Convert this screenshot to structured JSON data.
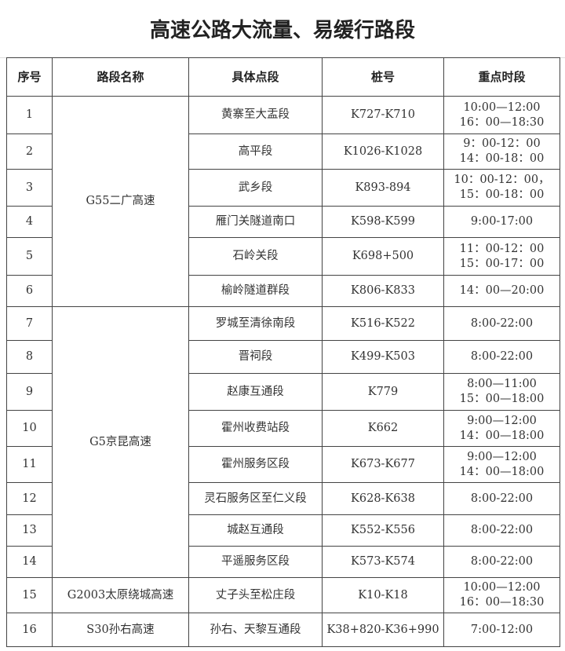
{
  "title": "高速公路大流量、易缓行路段",
  "headers": [
    "序号",
    "路段名称",
    "具体点段",
    "桩号",
    "重点时段"
  ],
  "roads": [
    {
      "name": "G55二广高速",
      "rows": [
        {
          "no": "1",
          "point": "黄寨至大盂段",
          "stake": "K727-K710",
          "time": "10:00—12:00\n16：00—18:30"
        },
        {
          "no": "2",
          "point": "高平段",
          "stake": "K1026-K1028",
          "time": "9：00-12：00\n14：00-18：00"
        },
        {
          "no": "3",
          "point": "武乡段",
          "stake": "K893-894",
          "time": "10：00-12：00，\n15：00-18：00"
        },
        {
          "no": "4",
          "point": "雁门关隧道南口",
          "stake": "K598-K599",
          "time": "9:00-17:00"
        },
        {
          "no": "5",
          "point": "石岭关段",
          "stake": "K698+500",
          "time": "11：00-12：00\n15：00-17：00"
        },
        {
          "no": "6",
          "point": "榆岭隧道群段",
          "stake": "K806-K833",
          "time": "14：00—20:00"
        }
      ]
    },
    {
      "name": "G5京昆高速",
      "rows": [
        {
          "no": "7",
          "point": "罗城至清徐南段",
          "stake": "K516-K522",
          "time": "8:00-22:00"
        },
        {
          "no": "8",
          "point": "晋祠段",
          "stake": "K499-K503",
          "time": "8:00-22:00"
        },
        {
          "no": "9",
          "point": "赵康互通段",
          "stake": "K779",
          "time": "8:00—11:00\n15：00—18:00"
        },
        {
          "no": "10",
          "point": "霍州收费站段",
          "stake": "K662",
          "time": "9:00—12:00\n14：00—18:00"
        },
        {
          "no": "11",
          "point": "霍州服务区段",
          "stake": "K673-K677",
          "time": "9:00—12:00\n14：00—18:00"
        },
        {
          "no": "12",
          "point": "灵石服务区至仁义段",
          "stake": "K628-K638",
          "time": "8:00-22:00"
        },
        {
          "no": "13",
          "point": "城赵互通段",
          "stake": "K552-K556",
          "time": "8:00-22:00"
        },
        {
          "no": "14",
          "point": "平遥服务区段",
          "stake": "K573-K574",
          "time": "8:00-22:00"
        }
      ]
    },
    {
      "name": "G2003太原绕城高速",
      "rows": [
        {
          "no": "15",
          "point": "丈子头至松庄段",
          "stake": "K10-K18",
          "time": "10:00—12:00\n16：00—18:30"
        }
      ]
    },
    {
      "name": "S30孙右高速",
      "rows": [
        {
          "no": "16",
          "point": "孙右、天黎互通段",
          "stake": "K38+820-K36+990",
          "time": "7:00-12:00"
        }
      ]
    }
  ]
}
